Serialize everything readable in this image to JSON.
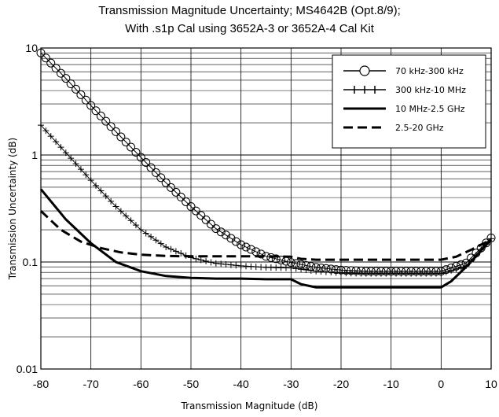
{
  "chart_data": {
    "type": "line",
    "title": "Transmission Magnitude Uncertainty; MS4642B (Opt.8/9);",
    "subtitle": "With .s1p Cal using 3652A-3 or 3652A-4 Cal Kit",
    "xlabel": "Transmission Magnitude (dB)",
    "ylabel": "Transmission Uncertainty (dB)",
    "xlim": [
      -80,
      10
    ],
    "ylim": [
      0.01,
      10
    ],
    "yscale": "log",
    "grid": true,
    "legend_position": "top-right",
    "x_ticks": [
      "-80",
      "-70",
      "-60",
      "-50",
      "-40",
      "-30",
      "-20",
      "-10",
      "0",
      "10"
    ],
    "y_ticks": [
      "0.01",
      "0.1",
      "1",
      "10"
    ],
    "series": [
      {
        "name": "70 kHz-300 kHz",
        "style": "open-circle-markers",
        "x": [
          -80,
          -75,
          -70,
          -65,
          -60,
          -55,
          -50,
          -45,
          -40,
          -35,
          -30,
          -25,
          -20,
          -15,
          -10,
          -5,
          0,
          5,
          10
        ],
        "y": [
          9.0,
          5.2,
          2.9,
          1.65,
          0.95,
          0.55,
          0.33,
          0.205,
          0.145,
          0.113,
          0.099,
          0.089,
          0.084,
          0.082,
          0.082,
          0.082,
          0.082,
          0.098,
          0.168
        ]
      },
      {
        "name": "300 kHz-10 MHz",
        "style": "plus-markers",
        "x": [
          -80,
          -75,
          -70,
          -65,
          -60,
          -55,
          -50,
          -45,
          -40,
          -35,
          -30,
          -25,
          -20,
          -15,
          -10,
          -5,
          0,
          5,
          10
        ],
        "y": [
          1.9,
          1.05,
          0.58,
          0.33,
          0.2,
          0.138,
          0.11,
          0.097,
          0.092,
          0.089,
          0.088,
          0.082,
          0.079,
          0.078,
          0.078,
          0.078,
          0.078,
          0.092,
          0.165
        ]
      },
      {
        "name": "10 MHz-2.5 GHz",
        "style": "solid",
        "x": [
          -80,
          -75,
          -70,
          -65,
          -60,
          -55,
          -50,
          -45,
          -40,
          -35,
          -30,
          -28,
          -25,
          -20,
          -15,
          -10,
          -5,
          0,
          2,
          5,
          10
        ],
        "y": [
          0.48,
          0.25,
          0.15,
          0.1,
          0.082,
          0.074,
          0.071,
          0.07,
          0.07,
          0.069,
          0.069,
          0.062,
          0.058,
          0.058,
          0.058,
          0.058,
          0.058,
          0.058,
          0.066,
          0.09,
          0.162
        ]
      },
      {
        "name": "2.5-20 GHz",
        "style": "dashed",
        "x": [
          -80,
          -76,
          -72,
          -68,
          -64,
          -60,
          -55,
          -50,
          -45,
          -40,
          -35,
          -30,
          -28,
          -25,
          -20,
          -15,
          -10,
          -5,
          0,
          3,
          6,
          10
        ],
        "y": [
          0.3,
          0.2,
          0.155,
          0.135,
          0.123,
          0.117,
          0.114,
          0.113,
          0.113,
          0.113,
          0.113,
          0.112,
          0.107,
          0.105,
          0.105,
          0.105,
          0.105,
          0.105,
          0.105,
          0.112,
          0.13,
          0.162
        ]
      }
    ]
  }
}
